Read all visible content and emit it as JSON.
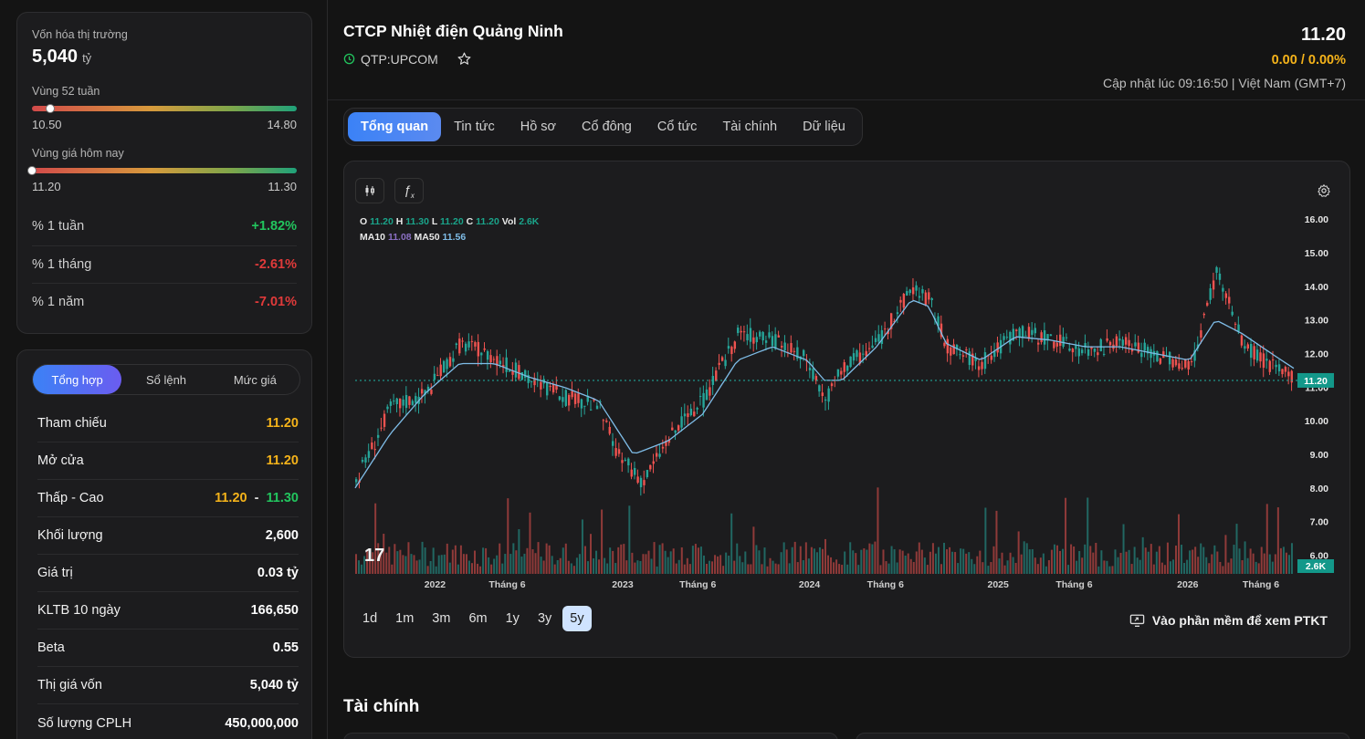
{
  "market": {
    "cap_label": "Vốn hóa thị trường",
    "cap_value": "5,040",
    "cap_unit": "tỷ",
    "range52_label": "Vùng 52 tuần",
    "range52_low": "10.50",
    "range52_high": "14.80",
    "range52_position": 0.07,
    "today_label": "Vùng giá hôm nay",
    "today_low": "11.20",
    "today_high": "11.30",
    "today_position": 0.0,
    "perf": [
      {
        "label": "% 1 tuần",
        "value": "+1.82%"
      },
      {
        "label": "% 1 tháng",
        "value": "-2.61%"
      },
      {
        "label": "% 1 năm",
        "value": "-7.01%"
      }
    ]
  },
  "summary": {
    "tabs": [
      "Tổng hợp",
      "Sổ lệnh",
      "Mức giá"
    ],
    "rows": [
      {
        "label": "Tham chiếu",
        "value": "11.20"
      },
      {
        "label": "Mở cửa",
        "value": "11.20"
      },
      {
        "label": "Thấp - Cao",
        "low": "11.20",
        "sep": "-",
        "high": "11.30"
      },
      {
        "label": "Khối lượng",
        "value": "2,600"
      },
      {
        "label": "Giá trị",
        "value": "0.03 tỷ"
      },
      {
        "label": "KLTB 10 ngày",
        "value": "166,650"
      },
      {
        "label": "Beta",
        "value": "0.55"
      },
      {
        "label": "Thị giá vốn",
        "value": "5,040 tỷ"
      },
      {
        "label": "Số lượng CPLH",
        "value": "450,000,000"
      }
    ]
  },
  "header": {
    "company": "CTCP Nhiệt điện Quảng Ninh",
    "ticker": "QTP:UPCOM",
    "price": "11.20",
    "change": "0.00 / 0.00%",
    "update": "Cập nhật lúc 09:16:50 | Việt Nam (GMT+7)"
  },
  "tabs": [
    "Tổng quan",
    "Tin tức",
    "Hồ sơ",
    "Cổ đông",
    "Cổ tức",
    "Tài chính",
    "Dữ liệu"
  ],
  "chart": {
    "legend_ohlc": {
      "o": "11.20",
      "h": "11.30",
      "l": "11.20",
      "c": "11.20",
      "vol": "2.6K"
    },
    "legend_ma": {
      "ma10": "11.08",
      "ma50": "11.56"
    },
    "ranges": [
      "1d",
      "1m",
      "3m",
      "6m",
      "1y",
      "3y",
      "5y"
    ],
    "active_range": "5y",
    "ptkt_label": "Vào phần mềm để xem PTKT",
    "last_price_tag": "11.20",
    "last_volume_tag": "2.6K"
  },
  "chart_data": {
    "type": "line",
    "title": "",
    "ylim": [
      5.5,
      16.3
    ],
    "yticks": [
      "16.00",
      "15.00",
      "14.00",
      "13.00",
      "12.00",
      "11.00",
      "10.00",
      "9.00",
      "8.00",
      "7.00",
      "6.00"
    ],
    "xticks": [
      "2022",
      "Tháng 6",
      "2023",
      "Tháng 6",
      "2024",
      "Tháng 6",
      "2025",
      "Tháng 6",
      "2026",
      "Tháng 6"
    ],
    "colors": {
      "up": "#26a69a",
      "down": "#ef5350",
      "ma": "#7fbde8",
      "ref": "#1fb5a5"
    },
    "price_key_points": [
      [
        0,
        8.2
      ],
      [
        4,
        10.4
      ],
      [
        8,
        10.8
      ],
      [
        12,
        12.3
      ],
      [
        16,
        11.9
      ],
      [
        20,
        11.2
      ],
      [
        24,
        10.7
      ],
      [
        28,
        10.4
      ],
      [
        30,
        9.0
      ],
      [
        33,
        8.2
      ],
      [
        36,
        9.5
      ],
      [
        40,
        10.6
      ],
      [
        44,
        12.6
      ],
      [
        48,
        12.4
      ],
      [
        52,
        11.8
      ],
      [
        54,
        10.6
      ],
      [
        56,
        11.6
      ],
      [
        60,
        12.3
      ],
      [
        64,
        14.0
      ],
      [
        66,
        13.6
      ],
      [
        68,
        12.2
      ],
      [
        72,
        11.7
      ],
      [
        76,
        12.7
      ],
      [
        80,
        12.4
      ],
      [
        84,
        12.1
      ],
      [
        88,
        12.3
      ],
      [
        92,
        12.0
      ],
      [
        96,
        11.5
      ],
      [
        99,
        14.5
      ],
      [
        102,
        12.3
      ],
      [
        106,
        11.5
      ],
      [
        108,
        11.2
      ]
    ],
    "ma_key_points": [
      [
        0,
        8.0
      ],
      [
        4,
        9.6
      ],
      [
        8,
        10.8
      ],
      [
        12,
        11.7
      ],
      [
        16,
        11.7
      ],
      [
        20,
        11.3
      ],
      [
        24,
        11.0
      ],
      [
        28,
        10.6
      ],
      [
        32,
        9.0
      ],
      [
        36,
        9.4
      ],
      [
        40,
        10.2
      ],
      [
        44,
        11.8
      ],
      [
        48,
        12.2
      ],
      [
        52,
        11.8
      ],
      [
        54,
        11.2
      ],
      [
        56,
        11.2
      ],
      [
        60,
        12.2
      ],
      [
        64,
        13.6
      ],
      [
        66,
        13.4
      ],
      [
        68,
        12.3
      ],
      [
        72,
        11.8
      ],
      [
        76,
        12.5
      ],
      [
        80,
        12.4
      ],
      [
        84,
        12.2
      ],
      [
        88,
        12.2
      ],
      [
        92,
        12.0
      ],
      [
        96,
        11.8
      ],
      [
        99,
        13.0
      ],
      [
        102,
        12.6
      ],
      [
        106,
        11.9
      ],
      [
        108,
        11.56
      ]
    ]
  }
}
